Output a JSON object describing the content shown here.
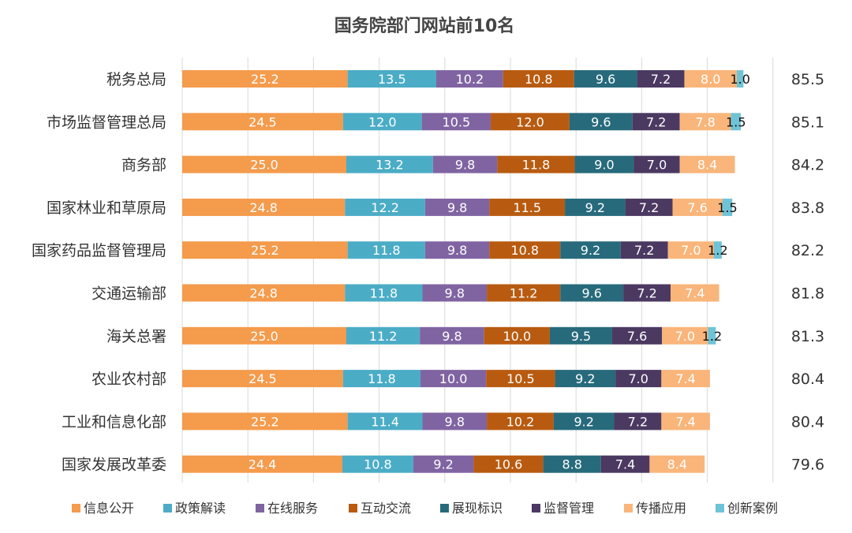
{
  "chart_data": {
    "type": "bar",
    "orientation": "horizontal",
    "stacked": true,
    "title": "国务院部门网站前10名",
    "categories": [
      "税务总局",
      "市场监督管理总局",
      "商务部",
      "国家林业和草原局",
      "国家药品监督管理局",
      "交通运输部",
      "海关总署",
      "农业农村部",
      "工业和信息化部",
      "国家发展改革委"
    ],
    "totals": [
      "85.5",
      "85.1",
      "84.2",
      "83.8",
      "82.2",
      "81.8",
      "81.3",
      "80.4",
      "80.4",
      "79.6"
    ],
    "series": [
      {
        "name": "信息公开",
        "color": "#F49B4C",
        "values": [
          25.2,
          24.5,
          25.0,
          24.8,
          25.2,
          24.8,
          25.0,
          24.5,
          25.2,
          24.4
        ],
        "labels": [
          "25.2",
          "24.5",
          "25.0",
          "24.8",
          "25.2",
          "24.8",
          "25.0",
          "24.5",
          "25.2",
          "24.4"
        ]
      },
      {
        "name": "政策解读",
        "color": "#4BACC6",
        "values": [
          13.5,
          12.0,
          13.2,
          12.2,
          11.8,
          11.8,
          11.2,
          11.8,
          11.4,
          10.8
        ],
        "labels": [
          "13.5",
          "12.0",
          "13.2",
          "12.2",
          "11.8",
          "11.8",
          "11.2",
          "11.8",
          "11.4",
          "10.8"
        ]
      },
      {
        "name": "在线服务",
        "color": "#8064A2",
        "values": [
          10.2,
          10.5,
          9.8,
          9.8,
          9.8,
          9.8,
          9.8,
          10.0,
          9.8,
          9.2
        ],
        "labels": [
          "10.2",
          "10.5",
          "9.8",
          "9.8",
          "9.8",
          "9.8",
          "9.8",
          "10.0",
          "9.8",
          "9.2"
        ]
      },
      {
        "name": "互动交流",
        "color": "#B85B10",
        "values": [
          10.8,
          12.0,
          11.8,
          11.5,
          10.8,
          11.2,
          10.0,
          10.5,
          10.2,
          10.6
        ],
        "labels": [
          "10.8",
          "12.0",
          "11.8",
          "11.5",
          "10.8",
          "11.2",
          "10.0",
          "10.5",
          "10.2",
          "10.6"
        ]
      },
      {
        "name": "展现标识",
        "color": "#276A7C",
        "values": [
          9.6,
          9.6,
          9.0,
          9.2,
          9.2,
          9.6,
          9.5,
          9.2,
          9.2,
          8.8
        ],
        "labels": [
          "9.6",
          "9.6",
          "9.0",
          "9.2",
          "9.2",
          "9.6",
          "9.5",
          "9.2",
          "9.2",
          "8.8"
        ]
      },
      {
        "name": "监督管理",
        "color": "#4B3962",
        "values": [
          7.2,
          7.2,
          7.0,
          7.2,
          7.2,
          7.2,
          7.6,
          7.0,
          7.2,
          7.4
        ],
        "labels": [
          "7.2",
          "7.2",
          "7.0",
          "7.2",
          "7.2",
          "7.2",
          "7.6",
          "7.0",
          "7.2",
          "7.4"
        ]
      },
      {
        "name": "传播应用",
        "color": "#F9B57A",
        "values": [
          8.0,
          7.8,
          8.4,
          7.6,
          7.0,
          7.4,
          7.0,
          7.4,
          7.4,
          8.4
        ],
        "labels": [
          "8.0",
          "7.8",
          "8.4",
          "7.6",
          "7.0",
          "7.4",
          "7.0",
          "7.4",
          "7.4",
          "8.4"
        ]
      },
      {
        "name": "创新案例",
        "color": "#6FC3D6",
        "values": [
          1.0,
          1.5,
          0,
          1.5,
          1.2,
          0,
          1.2,
          0,
          0,
          0
        ],
        "labels": [
          "1.0",
          "1.5",
          "",
          "1.5",
          "1.2",
          "",
          "1.2",
          "",
          "",
          ""
        ]
      }
    ],
    "xlim": [
      0,
      100
    ],
    "grid": true,
    "legend_position": "bottom"
  }
}
